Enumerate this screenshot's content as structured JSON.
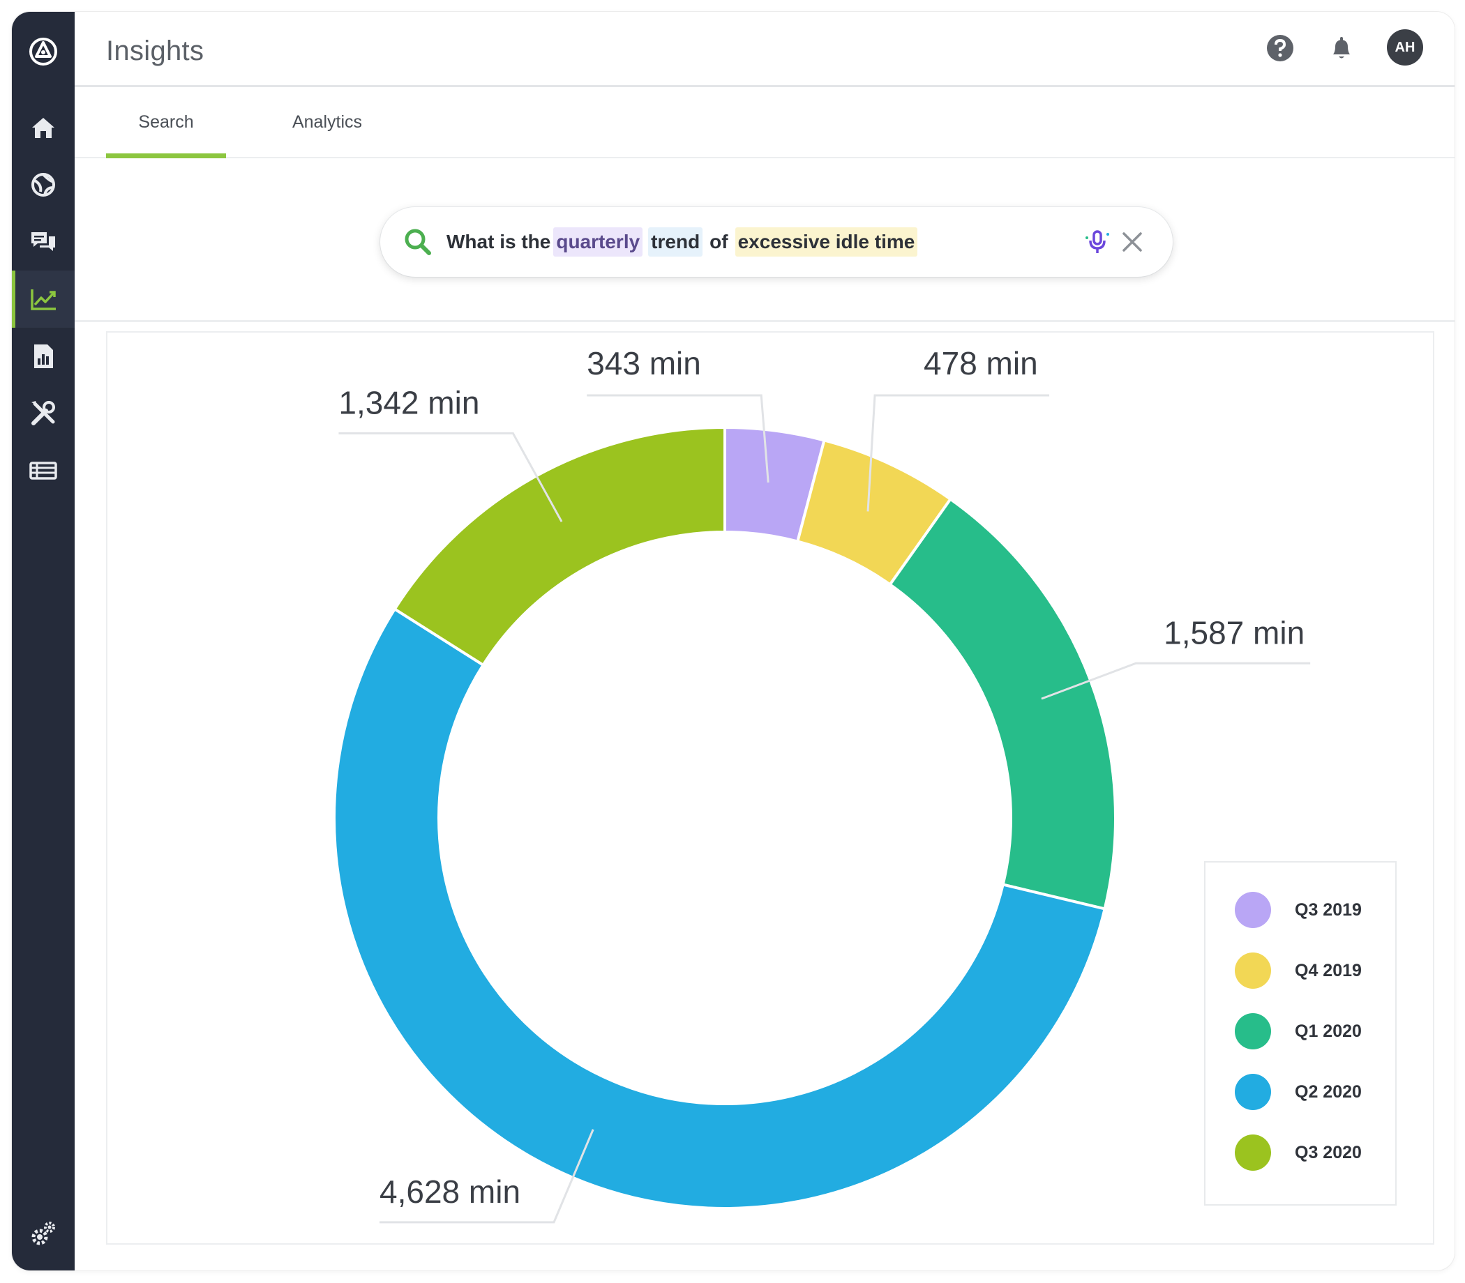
{
  "header": {
    "title": "Insights",
    "avatar_initials": "AH",
    "help_icon": "help-icon",
    "bell_icon": "bell-icon"
  },
  "sidebar": {
    "items": [
      {
        "icon": "home-icon"
      },
      {
        "icon": "globe-icon"
      },
      {
        "icon": "chat-icon"
      },
      {
        "icon": "trend-chart-icon",
        "active": true
      },
      {
        "icon": "report-icon"
      },
      {
        "icon": "tools-icon"
      },
      {
        "icon": "list-icon"
      }
    ],
    "settings_icon": "settings-icon",
    "accent": "#8cc63f"
  },
  "tabs": [
    {
      "label": "Search",
      "active": true
    },
    {
      "label": "Analytics",
      "active": false
    }
  ],
  "search": {
    "tokens": [
      {
        "text": "What is the",
        "highlight": "none"
      },
      {
        "text": "quarterly",
        "highlight": "purple"
      },
      {
        "text": "trend",
        "highlight": "blue"
      },
      {
        "text": "of",
        "highlight": "none"
      },
      {
        "text": "excessive idle time",
        "highlight": "yellow"
      }
    ]
  },
  "chart_data": {
    "type": "pie",
    "donut": true,
    "unit": "min",
    "categories": [
      "Q3 2019",
      "Q4 2019",
      "Q1 2020",
      "Q2 2020",
      "Q3 2020"
    ],
    "values": [
      343,
      478,
      1587,
      4628,
      1342
    ],
    "data_labels": [
      "343 min",
      "478 min",
      "1,587 min",
      "4,628 min",
      "1,342 min"
    ],
    "colors": [
      "#b9a6f5",
      "#f2d755",
      "#27bd8a",
      "#22ace1",
      "#9bc31f"
    ],
    "legend": "right"
  }
}
